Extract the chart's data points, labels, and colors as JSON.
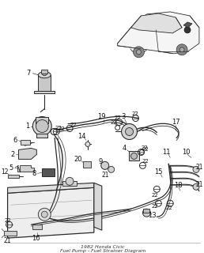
{
  "title": "1982 Honda Civic\nFuel Pump - Fuel Strainer Diagram",
  "bg_color": "#ffffff",
  "line_color": "#2a2a2a",
  "text_color": "#111111",
  "fig_width": 2.58,
  "fig_height": 3.2,
  "dpi": 100
}
